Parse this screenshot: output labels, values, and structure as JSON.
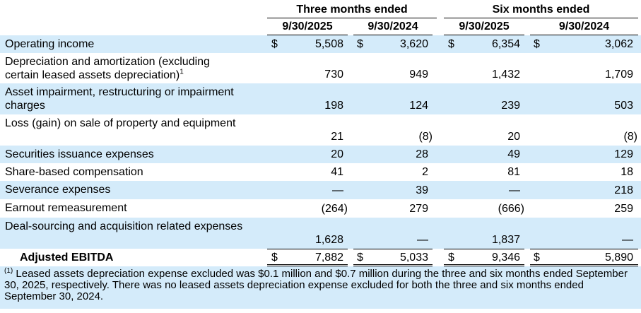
{
  "table": {
    "headers": {
      "groups": [
        "Three months ended",
        "Six months ended"
      ],
      "dates": [
        "9/30/2025",
        "9/30/2024",
        "9/30/2025",
        "9/30/2024"
      ]
    },
    "rows": [
      {
        "label": "Operating income",
        "currency": "$",
        "values": [
          "5,508",
          "3,620",
          "6,354",
          "3,062"
        ]
      },
      {
        "label": "Depreciation and amortization (excluding certain leased assets depreciation)",
        "note": "1",
        "values": [
          "730",
          "949",
          "1,432",
          "1,709"
        ]
      },
      {
        "label": "Asset impairment, restructuring or impairment charges",
        "values": [
          "198",
          "124",
          "239",
          "503"
        ]
      },
      {
        "label": "Loss (gain) on sale of property and equipment",
        "values": [
          "21",
          "(8)",
          "20",
          "(8)"
        ]
      },
      {
        "label": "Securities issuance expenses",
        "values": [
          "20",
          "28",
          "49",
          "129"
        ]
      },
      {
        "label": "Share-based compensation",
        "values": [
          "41",
          "2",
          "81",
          "18"
        ]
      },
      {
        "label": "Severance expenses",
        "values": [
          "—",
          "39",
          "—",
          "218"
        ]
      },
      {
        "label": "Earnout remeasurement",
        "values": [
          "(264)",
          "279",
          "(666)",
          "259"
        ]
      },
      {
        "label": "Deal-sourcing and acquisition related expenses",
        "values": [
          "1,628",
          "—",
          "1,837",
          "—"
        ]
      },
      {
        "label": "Adjusted EBITDA",
        "currency": "$",
        "total": true,
        "values": [
          "7,882",
          "5,033",
          "9,346",
          "5,890"
        ]
      }
    ]
  },
  "footnote": {
    "marker": "(1)",
    "text": "Leased assets depreciation expense excluded was $0.1 million and $0.7 million during the three and six months ended September 30, 2025, respectively. There was no leased assets depreciation expense excluded for both the three and six months ended September 30, 2024."
  }
}
